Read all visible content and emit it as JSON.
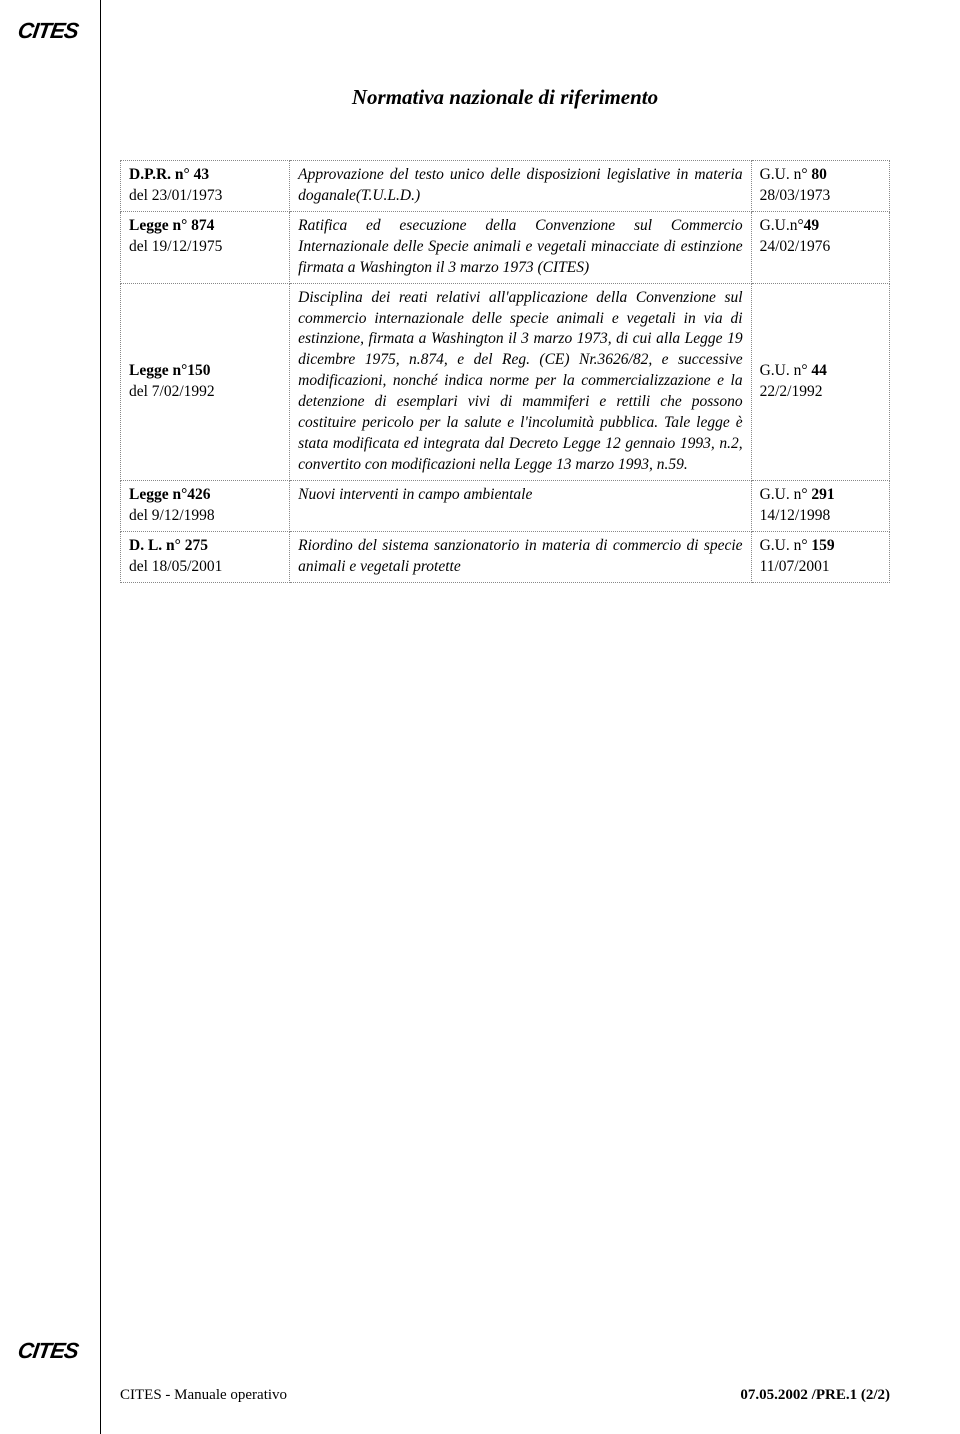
{
  "logo_text": "CITES",
  "title": "Normativa  nazionale di riferimento",
  "rows": [
    {
      "col1_line1_bold": "D.P.R. n° 43",
      "col1_line2": "del 23/01/1973",
      "col2": "Approvazione del testo unico delle disposizioni legislative in materia doganale(T.U.L.D.)",
      "col3_line1": "G.U. n° ",
      "col3_line1_bold": "80",
      "col3_line2": "28/03/1973"
    },
    {
      "col1_line1_bold": "Legge n° 874",
      "col1_line2": "del 19/12/1975",
      "col2": "Ratifica ed esecuzione della Convenzione sul Commercio Internazionale delle Specie animali e vegetali minacciate di estinzione firmata a Washington il 3 marzo 1973 (CITES)",
      "col3_line1": "G.U.n°",
      "col3_line1_bold": "49",
      "col3_line2": "24/02/1976"
    },
    {
      "col1_line1_bold": "Legge n°150",
      "col1_line2": "del 7/02/1992",
      "col2": "Disciplina dei reati  relativi all'applicazione  della  Convenzione  sul  commercio internazionale  delle  specie  animali  e vegetali  in  via  di estinzione,  firmata a  Washington  il  3  marzo 1973, di cui alla Legge 19  dicembre 1975,  n.874,  e del Reg. (CE)  Nr.3626/82,  e  successive modificazioni,  nonché  indica  norme  per la commercializzazione  e  la  detenzione  di esemplari  vivi  di mammiferi e rettili che  possono costituire pericolo per  la salute e l'incolumità  pubblica.  Tale legge è  stata modificata  ed integrata dal Decreto Legge 12  gennaio  1993,  n.2, convertito con modificazioni nella Legge  13 marzo  1993, n.59.",
      "col3_line1": "G.U. n° ",
      "col3_line1_bold": "44",
      "col3_line2": "22/2/1992"
    },
    {
      "col1_line1_bold": "Legge n°426",
      "col1_line2": "del  9/12/1998",
      "col2": "Nuovi interventi in campo ambientale",
      "col3_line1": "G.U. n° ",
      "col3_line1_bold": "291",
      "col3_line2": "14/12/1998"
    },
    {
      "col1_line1_bold": "D. L.  n° 275",
      "col1_line2": "del 18/05/2001",
      "col2": "Riordino del sistema sanzionatorio in materia di commercio di specie animali e vegetali protette",
      "col3_line1": "G.U. n° ",
      "col3_line1_bold": "159",
      "col3_line2": "11/07/2001"
    }
  ],
  "footer_left": "CITES - Manuale operativo",
  "footer_right": "07.05.2002 /PRE.1  (2/2)"
}
